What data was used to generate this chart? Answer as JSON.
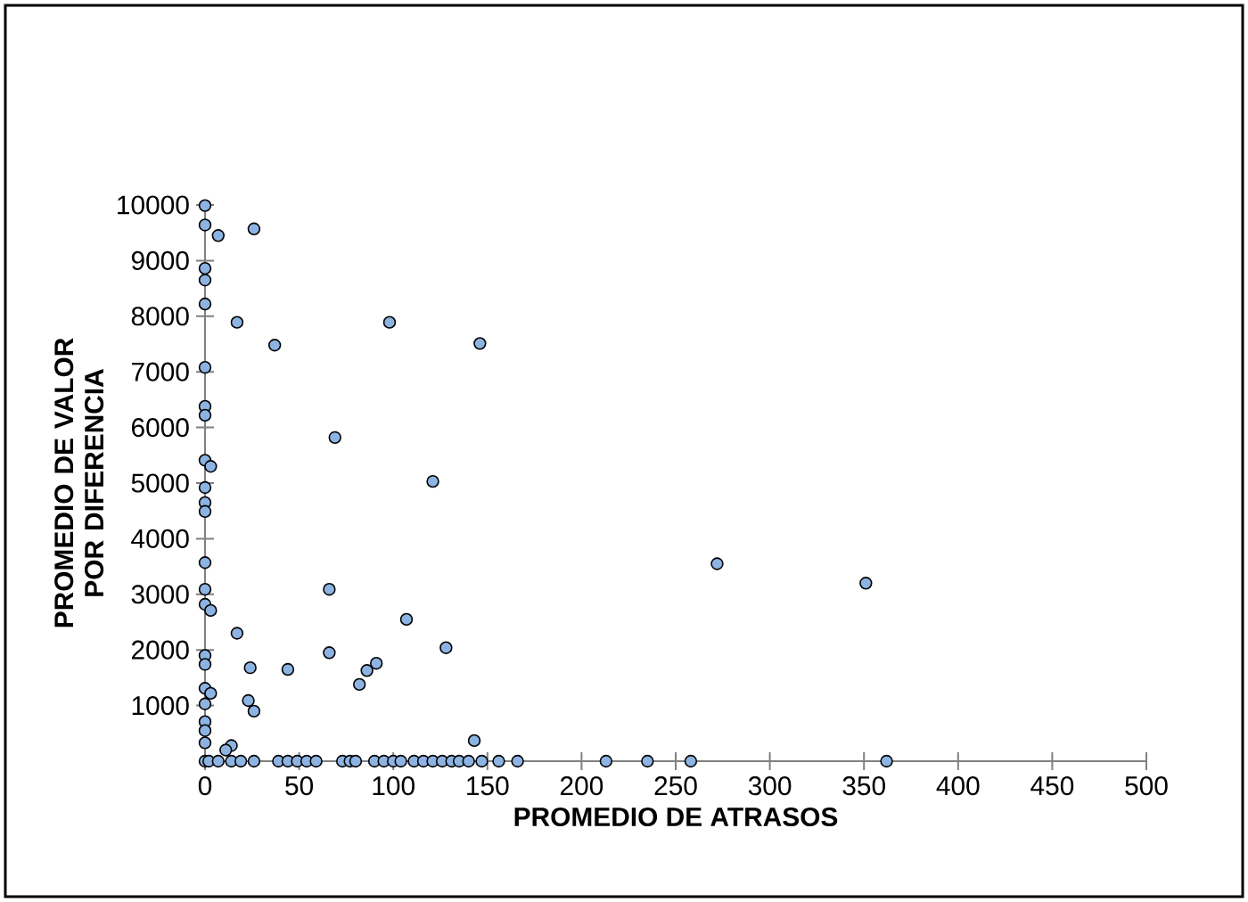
{
  "chart_data": {
    "type": "scatter",
    "xlabel": "PROMEDIO DE ATRASOS",
    "ylabel": "PROMEDIO DE VALOR POR DIFERENCIA",
    "xlim": [
      0,
      500
    ],
    "xticks": [
      0,
      50,
      100,
      150,
      200,
      250,
      300,
      350,
      400,
      450,
      500
    ],
    "ylim": [
      0,
      10000
    ],
    "yticks": [
      1000,
      2000,
      3000,
      4000,
      5000,
      6000,
      7000,
      8000,
      9000,
      10000
    ],
    "grid": false,
    "marker": "circle",
    "series": [
      {
        "color": "#8db3e2",
        "x": [
          0,
          0,
          7,
          26,
          0,
          0,
          0,
          17,
          37,
          98,
          146,
          0,
          0,
          0,
          69,
          0,
          3,
          0,
          0,
          0,
          121,
          0,
          0,
          0,
          3,
          66,
          107,
          17,
          128,
          66,
          0,
          0,
          24,
          44,
          91,
          86,
          82,
          0,
          3,
          0,
          23,
          26,
          0,
          0,
          0,
          14,
          11,
          143,
          272,
          351,
          0,
          2,
          7,
          14,
          19,
          26,
          39,
          44,
          49,
          54,
          59,
          73,
          77,
          80,
          90,
          95,
          100,
          104,
          111,
          116,
          121,
          126,
          131,
          135,
          140,
          147,
          156,
          166,
          213,
          235,
          258,
          362
        ],
        "values": [
          9990,
          9640,
          9450,
          9570,
          8860,
          8650,
          8220,
          7890,
          7480,
          7890,
          7510,
          7080,
          6380,
          6220,
          5820,
          5410,
          5300,
          4920,
          4650,
          4490,
          5030,
          3570,
          3090,
          2820,
          2710,
          3090,
          2550,
          2300,
          2040,
          1950,
          1900,
          1740,
          1680,
          1650,
          1760,
          1630,
          1380,
          1310,
          1220,
          1030,
          1090,
          900,
          710,
          550,
          330,
          280,
          200,
          370,
          3550,
          3200,
          0,
          0,
          0,
          0,
          0,
          0,
          0,
          0,
          0,
          0,
          0,
          0,
          0,
          0,
          0,
          0,
          0,
          0,
          0,
          0,
          0,
          0,
          0,
          0,
          0,
          0,
          0,
          0,
          0,
          0,
          0,
          0
        ]
      }
    ]
  }
}
